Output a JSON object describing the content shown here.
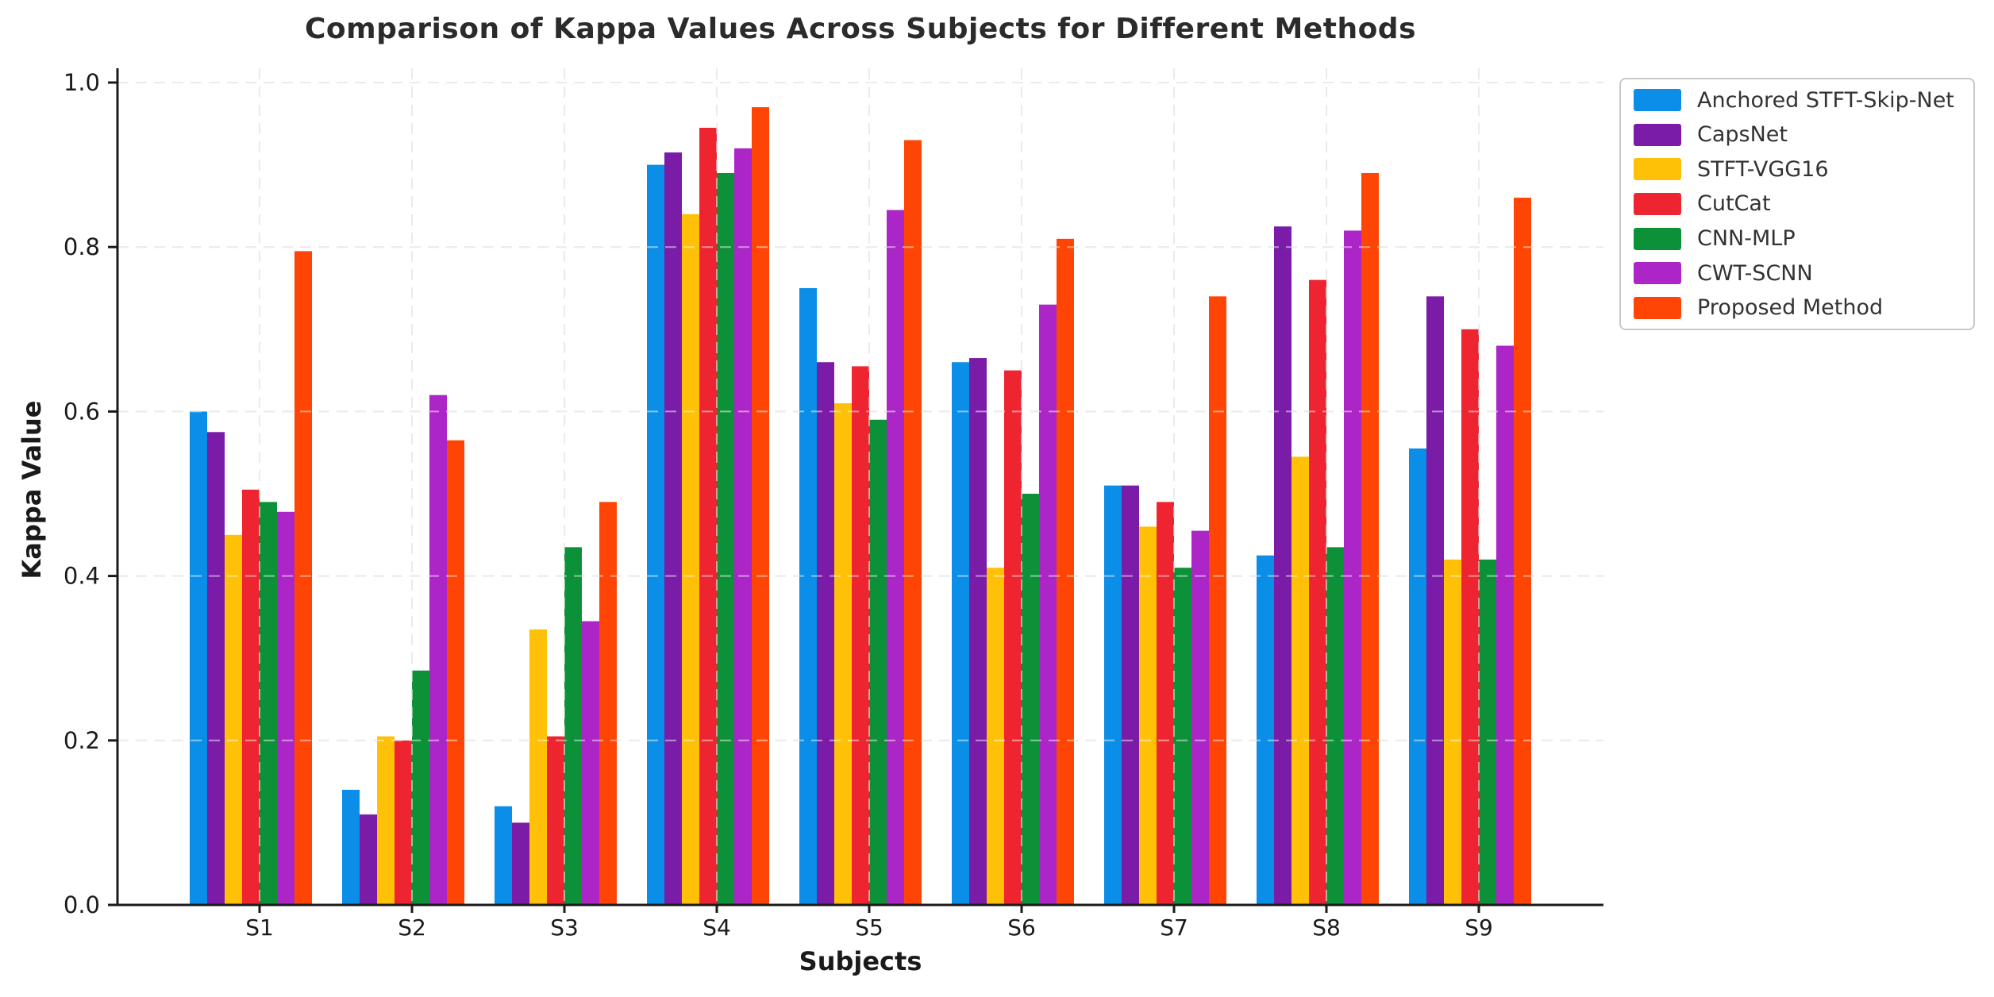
{
  "figure": {
    "background": "#ffffff",
    "axis_color": "#1a1a1a",
    "grid_color": "#d7d7d7",
    "title_color": "#2b2b2b"
  },
  "chart_data": {
    "type": "bar",
    "title": "Comparison of Kappa Values Across Subjects for Different Methods",
    "xlabel": "Subjects",
    "ylabel": "Kappa Value",
    "categories": [
      "S1",
      "S2",
      "S3",
      "S4",
      "S5",
      "S6",
      "S7",
      "S8",
      "S9"
    ],
    "series": [
      {
        "name": "Anchored STFT-Skip-Net",
        "color": "#0B8EE8",
        "values": [
          0.6,
          0.14,
          0.12,
          0.9,
          0.75,
          0.66,
          0.51,
          0.425,
          0.555
        ]
      },
      {
        "name": "CapsNet",
        "color": "#7A1CA8",
        "values": [
          0.575,
          0.11,
          0.1,
          0.915,
          0.66,
          0.665,
          0.51,
          0.825,
          0.74
        ]
      },
      {
        "name": "STFT-VGG16",
        "color": "#FFC107",
        "values": [
          0.45,
          0.205,
          0.335,
          0.84,
          0.61,
          0.41,
          0.46,
          0.545,
          0.42
        ]
      },
      {
        "name": "CutCat",
        "color": "#EF2431",
        "values": [
          0.505,
          0.2,
          0.205,
          0.945,
          0.655,
          0.65,
          0.49,
          0.76,
          0.7
        ]
      },
      {
        "name": "CNN-MLP",
        "color": "#0C9038",
        "values": [
          0.49,
          0.285,
          0.435,
          0.89,
          0.59,
          0.5,
          0.41,
          0.435,
          0.42
        ]
      },
      {
        "name": "CWT-SCNN",
        "color": "#AC25C6",
        "values": [
          0.478,
          0.62,
          0.345,
          0.92,
          0.845,
          0.73,
          0.455,
          0.82,
          0.68
        ]
      },
      {
        "name": "Proposed Method",
        "color": "#FF4505",
        "values": [
          0.795,
          0.565,
          0.49,
          0.97,
          0.93,
          0.81,
          0.74,
          0.89,
          0.86
        ]
      }
    ],
    "ylim": [
      0.0,
      1.02
    ],
    "yticks": [
      0.0,
      0.2,
      0.4,
      0.6,
      0.8,
      1.0
    ],
    "ytick_labels": [
      "0.0",
      "0.2",
      "0.4",
      "0.6",
      "0.8",
      "1.0"
    ],
    "grid": "dashed",
    "legend_position": "upper-right-outside"
  }
}
